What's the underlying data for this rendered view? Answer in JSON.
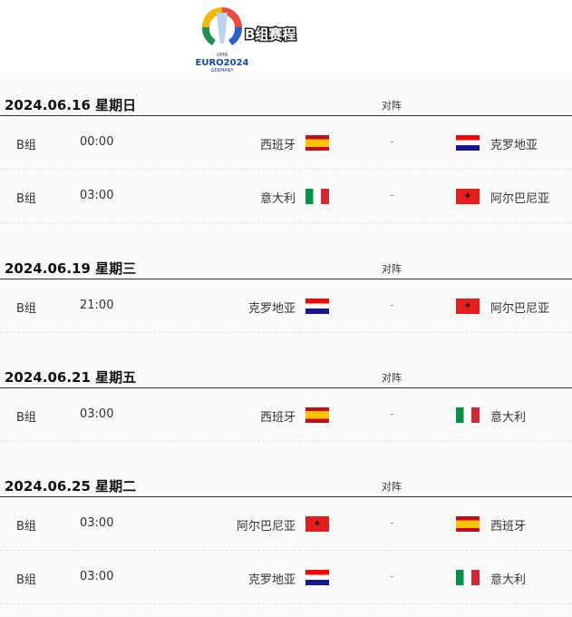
{
  "header": {
    "title": "B组赛程",
    "logo_text": "EURO2024 GERMANY",
    "logo_icon": "euro-2024-trophy-logo"
  },
  "vs_label": "对阵",
  "days": [
    {
      "date": "2024.06.16 星期日",
      "matches": [
        {
          "group": "B组",
          "time": "00:00",
          "home": "西班牙",
          "home_flag": "es",
          "score": "-",
          "away": "克罗地亚",
          "away_flag": "hr"
        },
        {
          "group": "B组",
          "time": "03:00",
          "home": "意大利",
          "home_flag": "it",
          "score": "-",
          "away": "阿尔巴尼亚",
          "away_flag": "al"
        }
      ]
    },
    {
      "date": "2024.06.19 星期三",
      "matches": [
        {
          "group": "B组",
          "time": "21:00",
          "home": "克罗地亚",
          "home_flag": "hr",
          "score": "-",
          "away": "阿尔巴尼亚",
          "away_flag": "al"
        }
      ]
    },
    {
      "date": "2024.06.21 星期五",
      "matches": [
        {
          "group": "B组",
          "time": "03:00",
          "home": "西班牙",
          "home_flag": "es",
          "score": "-",
          "away": "意大利",
          "away_flag": "it"
        }
      ]
    },
    {
      "date": "2024.06.25 星期二",
      "matches": [
        {
          "group": "B组",
          "time": "03:00",
          "home": "阿尔巴尼亚",
          "home_flag": "al",
          "score": "-",
          "away": "西班牙",
          "away_flag": "es"
        },
        {
          "group": "B组",
          "time": "03:00",
          "home": "克罗地亚",
          "home_flag": "hr",
          "score": "-",
          "away": "意大利",
          "away_flag": "it"
        }
      ]
    }
  ]
}
